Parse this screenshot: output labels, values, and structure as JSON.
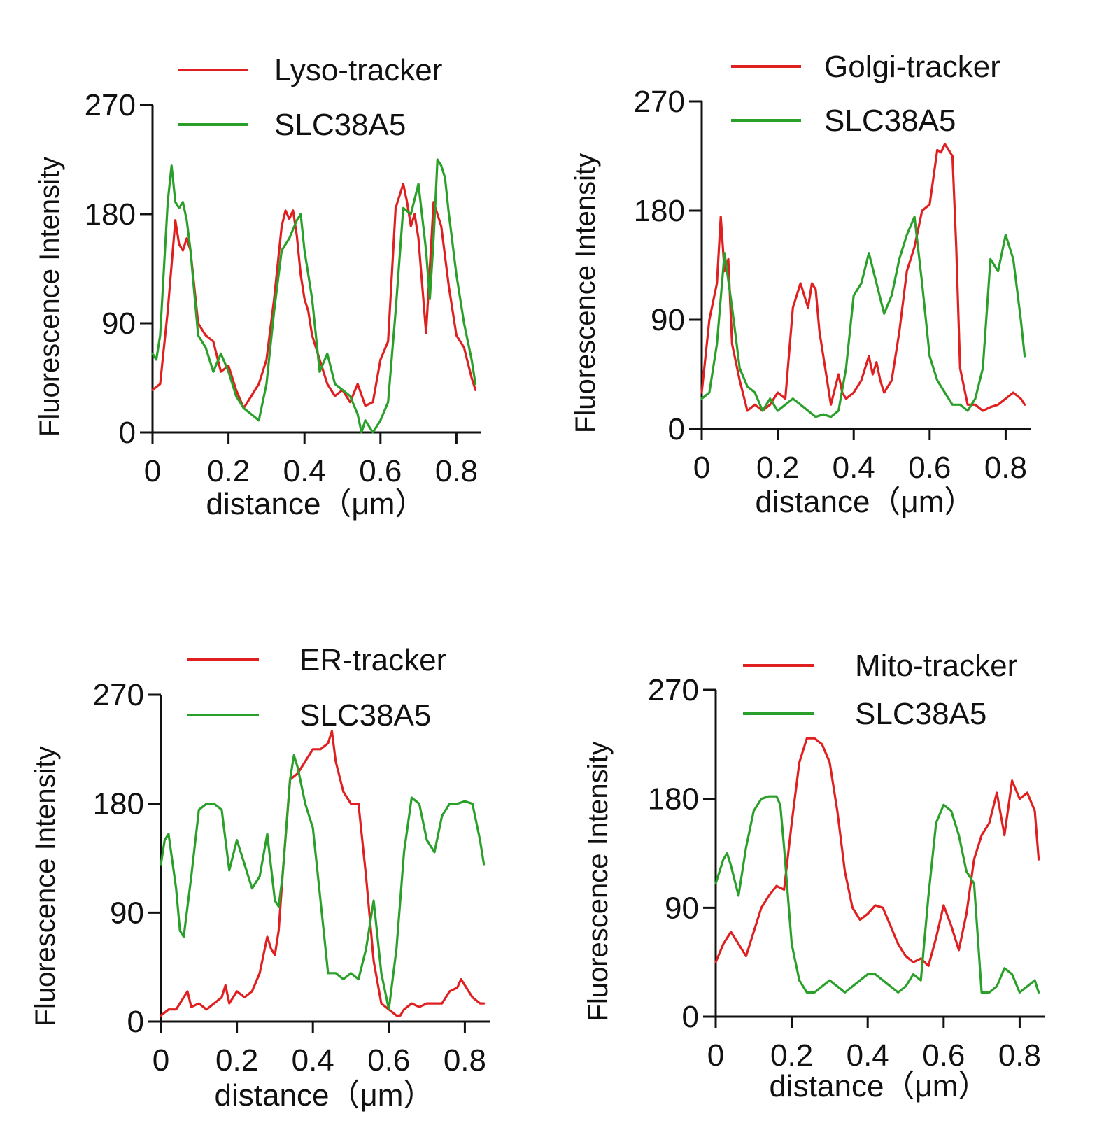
{
  "chart_data": [
    {
      "type": "line",
      "panel": "top-left",
      "xlabel": "distance（μm）",
      "ylabel": "Fluorescence Intensity",
      "xlim": [
        0,
        0.86
      ],
      "ylim": [
        0,
        270
      ],
      "xticks": [
        "0",
        "0.2",
        "0.4",
        "0.6",
        "0.8"
      ],
      "yticks": [
        "0",
        "90",
        "180",
        "270"
      ],
      "legend_position": "top",
      "series": [
        {
          "name": "Lyso-tracker",
          "color": "#e02020",
          "x": [
            0,
            0.02,
            0.04,
            0.06,
            0.07,
            0.08,
            0.09,
            0.1,
            0.11,
            0.12,
            0.14,
            0.16,
            0.18,
            0.2,
            0.22,
            0.24,
            0.26,
            0.28,
            0.3,
            0.32,
            0.34,
            0.35,
            0.36,
            0.37,
            0.38,
            0.39,
            0.4,
            0.41,
            0.42,
            0.44,
            0.46,
            0.48,
            0.5,
            0.52,
            0.54,
            0.56,
            0.58,
            0.6,
            0.62,
            0.64,
            0.66,
            0.67,
            0.68,
            0.69,
            0.7,
            0.72,
            0.74,
            0.76,
            0.78,
            0.8,
            0.82,
            0.84,
            0.85
          ],
          "y": [
            35,
            40,
            100,
            175,
            155,
            150,
            160,
            150,
            120,
            90,
            80,
            75,
            50,
            55,
            35,
            20,
            30,
            40,
            60,
            110,
            170,
            183,
            176,
            183,
            162,
            130,
            110,
            100,
            80,
            60,
            40,
            30,
            35,
            25,
            40,
            22,
            25,
            60,
            75,
            185,
            205,
            190,
            170,
            180,
            160,
            82,
            190,
            170,
            120,
            80,
            70,
            45,
            35
          ]
        },
        {
          "name": "SLC38A5",
          "color": "#2aa02a",
          "x": [
            0,
            0.01,
            0.02,
            0.04,
            0.05,
            0.06,
            0.07,
            0.08,
            0.09,
            0.1,
            0.12,
            0.14,
            0.16,
            0.18,
            0.2,
            0.22,
            0.24,
            0.26,
            0.28,
            0.3,
            0.32,
            0.34,
            0.36,
            0.38,
            0.39,
            0.4,
            0.42,
            0.44,
            0.46,
            0.48,
            0.5,
            0.52,
            0.54,
            0.55,
            0.56,
            0.57,
            0.58,
            0.6,
            0.62,
            0.64,
            0.66,
            0.68,
            0.7,
            0.72,
            0.73,
            0.74,
            0.75,
            0.76,
            0.77,
            0.78,
            0.8,
            0.82,
            0.84,
            0.85
          ],
          "y": [
            65,
            60,
            80,
            190,
            220,
            190,
            185,
            190,
            175,
            150,
            80,
            70,
            50,
            65,
            50,
            30,
            20,
            15,
            10,
            40,
            100,
            150,
            160,
            175,
            180,
            150,
            110,
            50,
            65,
            40,
            35,
            30,
            15,
            0,
            10,
            5,
            0,
            10,
            25,
            100,
            185,
            180,
            205,
            150,
            110,
            160,
            225,
            220,
            210,
            180,
            130,
            90,
            60,
            40
          ]
        }
      ]
    },
    {
      "type": "line",
      "panel": "top-right",
      "xlabel": "distance（μm）",
      "ylabel": "Fluorescence Intensity",
      "xlim": [
        0,
        0.86
      ],
      "ylim": [
        0,
        270
      ],
      "xticks": [
        "0",
        "0.2",
        "0.4",
        "0.6",
        "0.8"
      ],
      "yticks": [
        "0",
        "90",
        "180",
        "270"
      ],
      "legend_position": "top",
      "series": [
        {
          "name": "Golgi-tracker",
          "color": "#e02020",
          "x": [
            0,
            0.02,
            0.04,
            0.05,
            0.06,
            0.07,
            0.08,
            0.1,
            0.12,
            0.14,
            0.16,
            0.18,
            0.2,
            0.22,
            0.24,
            0.26,
            0.28,
            0.29,
            0.3,
            0.31,
            0.32,
            0.34,
            0.36,
            0.37,
            0.38,
            0.4,
            0.42,
            0.44,
            0.45,
            0.46,
            0.47,
            0.48,
            0.5,
            0.52,
            0.54,
            0.56,
            0.58,
            0.6,
            0.62,
            0.63,
            0.64,
            0.66,
            0.67,
            0.68,
            0.7,
            0.72,
            0.74,
            0.76,
            0.78,
            0.8,
            0.82,
            0.84,
            0.85
          ],
          "y": [
            30,
            90,
            120,
            175,
            130,
            140,
            70,
            40,
            15,
            20,
            15,
            20,
            30,
            25,
            100,
            120,
            100,
            120,
            115,
            80,
            60,
            20,
            45,
            30,
            25,
            30,
            40,
            60,
            45,
            55,
            40,
            30,
            40,
            80,
            130,
            150,
            180,
            185,
            230,
            228,
            235,
            225,
            150,
            50,
            20,
            20,
            15,
            18,
            20,
            25,
            30,
            25,
            20
          ]
        },
        {
          "name": "SLC38A5",
          "color": "#2aa02a",
          "x": [
            0,
            0.02,
            0.04,
            0.06,
            0.08,
            0.1,
            0.12,
            0.14,
            0.16,
            0.18,
            0.2,
            0.22,
            0.24,
            0.26,
            0.28,
            0.3,
            0.32,
            0.34,
            0.36,
            0.38,
            0.4,
            0.42,
            0.44,
            0.46,
            0.48,
            0.5,
            0.52,
            0.54,
            0.56,
            0.58,
            0.6,
            0.62,
            0.64,
            0.66,
            0.68,
            0.7,
            0.72,
            0.74,
            0.76,
            0.78,
            0.8,
            0.82,
            0.84,
            0.85
          ],
          "y": [
            25,
            30,
            70,
            145,
            100,
            50,
            35,
            30,
            15,
            25,
            15,
            20,
            25,
            20,
            15,
            10,
            12,
            10,
            15,
            50,
            110,
            120,
            145,
            120,
            95,
            110,
            140,
            160,
            175,
            120,
            60,
            40,
            30,
            20,
            20,
            15,
            25,
            50,
            140,
            130,
            160,
            140,
            90,
            60
          ]
        }
      ]
    },
    {
      "type": "line",
      "panel": "bottom-left",
      "xlabel": "distance（μm）",
      "ylabel": "Fluorescence Intensity",
      "xlim": [
        0,
        0.86
      ],
      "ylim": [
        0,
        270
      ],
      "xticks": [
        "0",
        "0.2",
        "0.4",
        "0.6",
        "0.8"
      ],
      "yticks": [
        "0",
        "90",
        "180",
        "270"
      ],
      "legend_position": "top",
      "series": [
        {
          "name": "ER-tracker",
          "color": "#e02020",
          "x": [
            0,
            0.02,
            0.04,
            0.06,
            0.07,
            0.08,
            0.1,
            0.12,
            0.14,
            0.16,
            0.17,
            0.18,
            0.2,
            0.22,
            0.24,
            0.26,
            0.28,
            0.29,
            0.3,
            0.31,
            0.32,
            0.34,
            0.36,
            0.38,
            0.4,
            0.42,
            0.44,
            0.45,
            0.46,
            0.48,
            0.5,
            0.52,
            0.54,
            0.56,
            0.58,
            0.6,
            0.62,
            0.63,
            0.64,
            0.66,
            0.68,
            0.7,
            0.72,
            0.74,
            0.76,
            0.78,
            0.79,
            0.8,
            0.82,
            0.84,
            0.85
          ],
          "y": [
            5,
            10,
            10,
            20,
            25,
            12,
            15,
            10,
            15,
            20,
            30,
            15,
            25,
            20,
            25,
            40,
            70,
            60,
            55,
            75,
            120,
            200,
            205,
            215,
            225,
            225,
            230,
            240,
            215,
            190,
            180,
            180,
            120,
            50,
            15,
            10,
            5,
            5,
            10,
            15,
            12,
            15,
            15,
            15,
            25,
            28,
            35,
            30,
            20,
            15,
            15
          ]
        },
        {
          "name": "SLC38A5",
          "color": "#2aa02a",
          "x": [
            0,
            0.01,
            0.02,
            0.04,
            0.05,
            0.06,
            0.08,
            0.1,
            0.12,
            0.14,
            0.16,
            0.18,
            0.2,
            0.22,
            0.24,
            0.26,
            0.28,
            0.3,
            0.31,
            0.32,
            0.34,
            0.35,
            0.36,
            0.38,
            0.4,
            0.42,
            0.44,
            0.46,
            0.48,
            0.5,
            0.52,
            0.54,
            0.56,
            0.58,
            0.6,
            0.62,
            0.64,
            0.66,
            0.68,
            0.7,
            0.72,
            0.74,
            0.76,
            0.78,
            0.8,
            0.82,
            0.84,
            0.85
          ],
          "y": [
            130,
            150,
            155,
            110,
            75,
            70,
            120,
            175,
            180,
            180,
            175,
            125,
            150,
            130,
            110,
            120,
            155,
            100,
            95,
            120,
            200,
            220,
            210,
            180,
            160,
            100,
            40,
            40,
            35,
            40,
            35,
            60,
            100,
            40,
            10,
            60,
            140,
            185,
            180,
            150,
            140,
            170,
            180,
            180,
            182,
            180,
            150,
            130
          ]
        }
      ]
    },
    {
      "type": "line",
      "panel": "bottom-right",
      "xlabel": "distance（μm）",
      "ylabel": "Fluorescence Intensity",
      "xlim": [
        0,
        0.86
      ],
      "ylim": [
        0,
        270
      ],
      "xticks": [
        "0",
        "0.2",
        "0.4",
        "0.6",
        "0.8"
      ],
      "yticks": [
        "0",
        "90",
        "180",
        "270"
      ],
      "legend_position": "top",
      "series": [
        {
          "name": "Mito-tracker",
          "color": "#e02020",
          "x": [
            0,
            0.02,
            0.04,
            0.06,
            0.08,
            0.1,
            0.12,
            0.14,
            0.16,
            0.18,
            0.2,
            0.22,
            0.24,
            0.26,
            0.28,
            0.3,
            0.32,
            0.34,
            0.36,
            0.38,
            0.4,
            0.42,
            0.44,
            0.46,
            0.48,
            0.5,
            0.52,
            0.54,
            0.56,
            0.58,
            0.6,
            0.62,
            0.64,
            0.66,
            0.68,
            0.7,
            0.72,
            0.74,
            0.76,
            0.78,
            0.8,
            0.82,
            0.84,
            0.85
          ],
          "y": [
            45,
            60,
            70,
            60,
            50,
            70,
            90,
            100,
            108,
            105,
            160,
            210,
            230,
            230,
            225,
            210,
            170,
            120,
            90,
            80,
            85,
            92,
            90,
            75,
            60,
            50,
            45,
            48,
            42,
            65,
            92,
            75,
            55,
            85,
            130,
            150,
            160,
            185,
            150,
            195,
            180,
            185,
            170,
            130
          ]
        },
        {
          "name": "SLC38A5",
          "color": "#2aa02a",
          "x": [
            0,
            0.02,
            0.03,
            0.04,
            0.06,
            0.08,
            0.1,
            0.12,
            0.14,
            0.16,
            0.17,
            0.18,
            0.2,
            0.22,
            0.24,
            0.26,
            0.28,
            0.3,
            0.32,
            0.34,
            0.36,
            0.38,
            0.4,
            0.42,
            0.44,
            0.46,
            0.48,
            0.5,
            0.52,
            0.54,
            0.56,
            0.58,
            0.6,
            0.62,
            0.64,
            0.66,
            0.68,
            0.7,
            0.72,
            0.74,
            0.76,
            0.78,
            0.8,
            0.82,
            0.84,
            0.85
          ],
          "y": [
            110,
            130,
            135,
            125,
            100,
            140,
            170,
            180,
            182,
            182,
            175,
            140,
            60,
            30,
            20,
            20,
            25,
            30,
            25,
            20,
            25,
            30,
            35,
            35,
            30,
            25,
            20,
            25,
            35,
            30,
            100,
            160,
            175,
            170,
            150,
            120,
            110,
            20,
            20,
            25,
            40,
            35,
            20,
            25,
            30,
            20
          ]
        }
      ]
    }
  ]
}
